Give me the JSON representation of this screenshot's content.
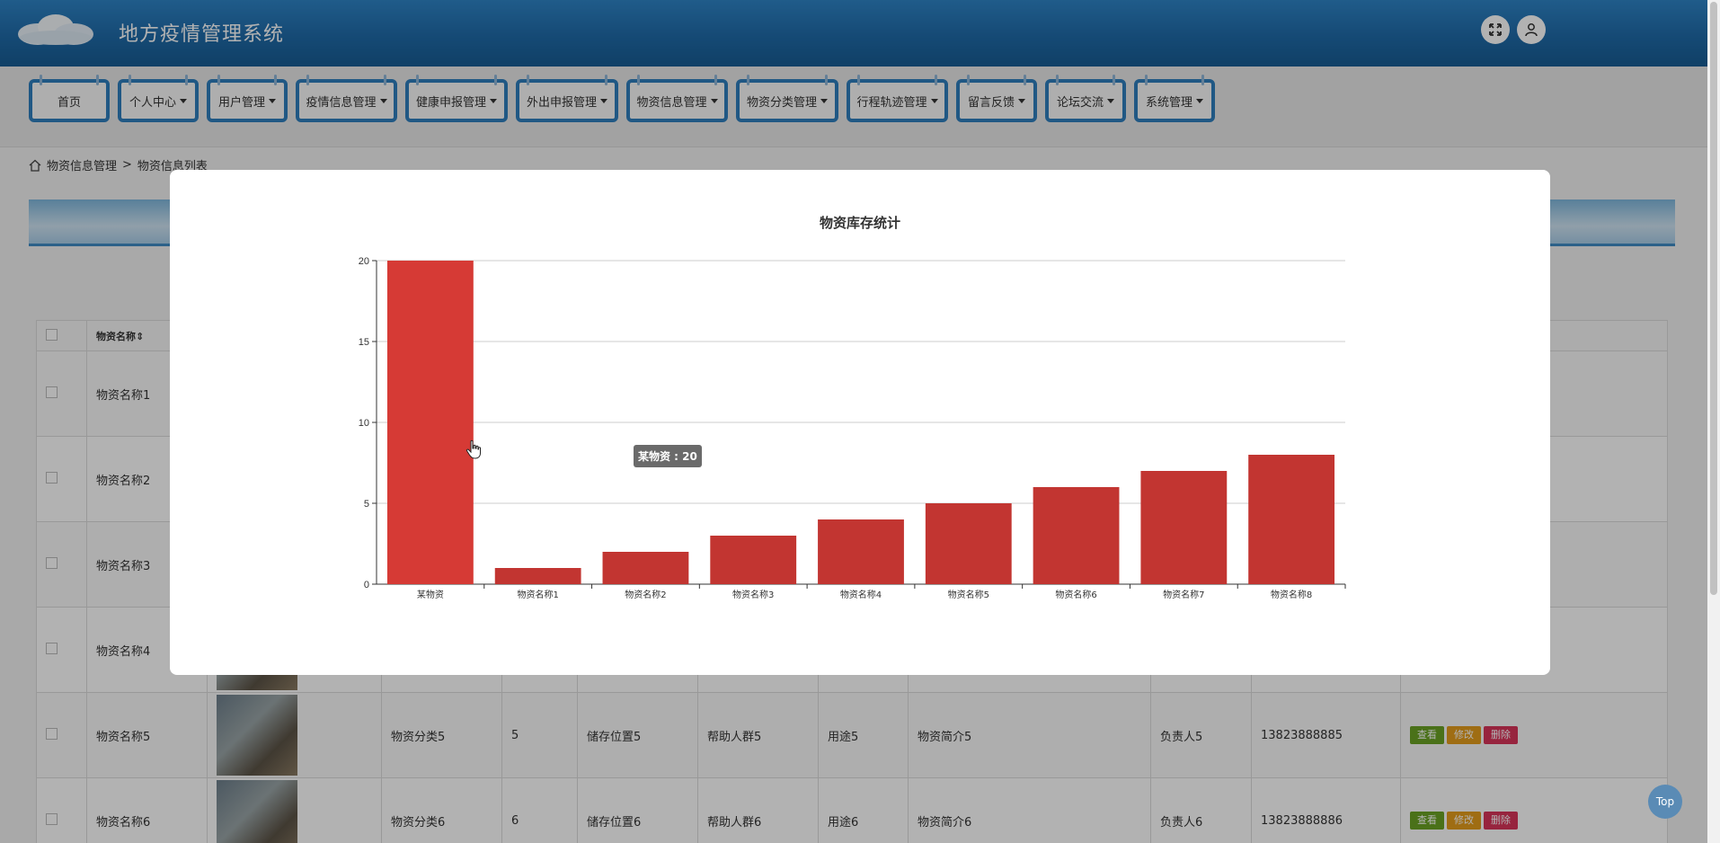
{
  "header": {
    "title": "地方疫情管理系统",
    "fullscreen_icon": "expand-icon",
    "user_icon": "user-icon"
  },
  "nav": {
    "items": [
      {
        "label": "首页",
        "dropdown": false
      },
      {
        "label": "个人中心",
        "dropdown": true
      },
      {
        "label": "用户管理",
        "dropdown": true
      },
      {
        "label": "疫情信息管理",
        "dropdown": true
      },
      {
        "label": "健康申报管理",
        "dropdown": true
      },
      {
        "label": "外出申报管理",
        "dropdown": true
      },
      {
        "label": "物资信息管理",
        "dropdown": true
      },
      {
        "label": "物资分类管理",
        "dropdown": true
      },
      {
        "label": "行程轨迹管理",
        "dropdown": true
      },
      {
        "label": "留言反馈",
        "dropdown": true
      },
      {
        "label": "论坛交流",
        "dropdown": true
      },
      {
        "label": "系统管理",
        "dropdown": true
      }
    ]
  },
  "breadcrumb": {
    "home_icon": "home-icon",
    "section": "物资信息管理",
    "separator": ">",
    "page": "物资信息列表"
  },
  "table": {
    "header_name": "物资名称",
    "rows": [
      {
        "name": "物资名称1",
        "category": "",
        "qty": "",
        "location": "",
        "group": "",
        "usage": "",
        "intro": "",
        "owner": "",
        "phone": ""
      },
      {
        "name": "物资名称2",
        "category": "",
        "qty": "",
        "location": "",
        "group": "",
        "usage": "",
        "intro": "",
        "owner": "",
        "phone": ""
      },
      {
        "name": "物资名称3",
        "category": "",
        "qty": "",
        "location": "",
        "group": "",
        "usage": "",
        "intro": "",
        "owner": "",
        "phone": ""
      },
      {
        "name": "物资名称4",
        "category": "",
        "qty": "",
        "location": "",
        "group": "",
        "usage": "",
        "intro": "",
        "owner": "",
        "phone": ""
      },
      {
        "name": "物资名称5",
        "category": "物资分类5",
        "qty": "5",
        "location": "储存位置5",
        "group": "帮助人群5",
        "usage": "用途5",
        "intro": "物资简介5",
        "owner": "负责人5",
        "phone": "13823888885"
      },
      {
        "name": "物资名称6",
        "category": "物资分类6",
        "qty": "6",
        "location": "储存位置6",
        "group": "帮助人群6",
        "usage": "用途6",
        "intro": "物资简介6",
        "owner": "负责人6",
        "phone": "13823888886"
      }
    ],
    "actions": {
      "view": "查看",
      "edit": "修改",
      "delete": "删除"
    }
  },
  "top_button": "Top",
  "chart_data": {
    "type": "bar",
    "title": "物资库存统计",
    "categories": [
      "某物资",
      "物资名称1",
      "物资名称2",
      "物资名称3",
      "物资名称4",
      "物资名称5",
      "物资名称6",
      "物资名称7",
      "物资名称8"
    ],
    "values": [
      20,
      1,
      2,
      3,
      4,
      5,
      6,
      7,
      8
    ],
    "ylim": [
      0,
      20
    ],
    "yticks": [
      0,
      5,
      10,
      15,
      20
    ],
    "grid": true,
    "bar_color": "#c23531",
    "highlight_color": "#d63a35",
    "tooltip": "某物资 : 20"
  }
}
